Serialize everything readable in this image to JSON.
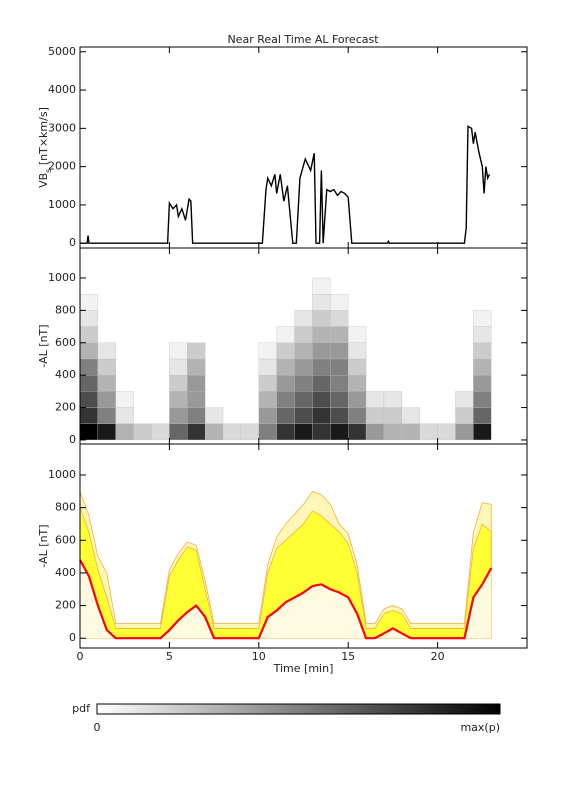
{
  "title": "Near Real Time AL Forecast",
  "chart_data": [
    {
      "type": "line",
      "ylabel": [
        "VB",
        "s",
        " [nT×km/s]"
      ],
      "color": "#000000",
      "xlim": [
        0,
        25
      ],
      "xticks": [
        0,
        5,
        10,
        15,
        20
      ],
      "ylim": [
        -125,
        5125
      ],
      "yticks": [
        0,
        1000,
        2000,
        3000,
        4000,
        5000
      ],
      "x": [
        0,
        0.4,
        0.45,
        0.5,
        4.9,
        5.0,
        5.2,
        5.4,
        5.5,
        5.7,
        5.9,
        6.1,
        6.2,
        6.3,
        10.2,
        10.4,
        10.5,
        10.7,
        10.9,
        11.0,
        11.2,
        11.4,
        11.6,
        11.7,
        11.9,
        12.1,
        12.3,
        12.6,
        12.9,
        13.1,
        13.2,
        13.4,
        13.5,
        13.6,
        13.8,
        14.0,
        14.2,
        14.4,
        14.6,
        14.8,
        15.0,
        15.2,
        17.2,
        17.25,
        17.3,
        21.5,
        21.6,
        21.7,
        21.9,
        22.0,
        22.1,
        22.3,
        22.5,
        22.6,
        22.7,
        22.8,
        22.9
      ],
      "values": [
        0,
        0,
        200,
        0,
        0,
        1050,
        900,
        1000,
        700,
        900,
        600,
        1150,
        1100,
        0,
        0,
        1400,
        1700,
        1500,
        1800,
        1300,
        1800,
        1100,
        1500,
        1000,
        0,
        0,
        1700,
        2200,
        1900,
        2350,
        0,
        0,
        1900,
        0,
        1400,
        1350,
        1400,
        1250,
        1350,
        1300,
        1200,
        0,
        0,
        50,
        0,
        0,
        400,
        3050,
        3000,
        2600,
        2900,
        2400,
        2000,
        1300,
        2000,
        1700,
        1800
      ]
    },
    {
      "type": "heatmap",
      "ylabel": "-AL [nT]",
      "xlim": [
        0,
        25
      ],
      "xticks": [
        0,
        5,
        10,
        15,
        20
      ],
      "ylim": [
        -25,
        1185
      ],
      "yticks": [
        0,
        200,
        400,
        600,
        800,
        1000
      ],
      "x_bins": [
        0,
        1,
        2,
        3,
        4,
        5,
        6,
        7,
        8,
        9,
        10,
        11,
        12,
        13,
        14,
        15,
        16,
        17,
        18,
        19,
        20,
        21,
        22,
        23
      ],
      "y_bins": [
        0,
        100,
        200,
        300,
        400,
        500,
        600,
        700,
        800,
        900,
        1000
      ],
      "values": [
        [
          1,
          0.8,
          0.7,
          0.6,
          0.5,
          0.3,
          0.2,
          0.1,
          0.05,
          0
        ],
        [
          0.9,
          0.5,
          0.4,
          0.3,
          0.2,
          0.1,
          0,
          0,
          0,
          0
        ],
        [
          0.3,
          0.1,
          0.05,
          0,
          0,
          0,
          0,
          0,
          0,
          0
        ],
        [
          0.2,
          0,
          0,
          0,
          0,
          0,
          0,
          0,
          0,
          0
        ],
        [
          0.15,
          0,
          0,
          0,
          0,
          0,
          0,
          0,
          0,
          0
        ],
        [
          0.6,
          0.4,
          0.3,
          0.2,
          0.1,
          0.05,
          0,
          0,
          0,
          0
        ],
        [
          0.8,
          0.5,
          0.4,
          0.4,
          0.3,
          0.2,
          0,
          0,
          0,
          0
        ],
        [
          0.3,
          0.1,
          0,
          0,
          0,
          0,
          0,
          0,
          0,
          0
        ],
        [
          0.15,
          0,
          0,
          0,
          0,
          0,
          0,
          0,
          0,
          0
        ],
        [
          0.15,
          0,
          0,
          0,
          0,
          0,
          0,
          0,
          0,
          0
        ],
        [
          0.5,
          0.4,
          0.3,
          0.2,
          0.1,
          0.05,
          0,
          0,
          0,
          0
        ],
        [
          0.8,
          0.6,
          0.5,
          0.4,
          0.3,
          0.2,
          0.05,
          0,
          0,
          0
        ],
        [
          0.9,
          0.7,
          0.6,
          0.5,
          0.4,
          0.3,
          0.2,
          0.1,
          0,
          0
        ],
        [
          0.8,
          0.8,
          0.7,
          0.6,
          0.5,
          0.4,
          0.3,
          0.2,
          0.1,
          0.05
        ],
        [
          0.9,
          0.7,
          0.6,
          0.5,
          0.5,
          0.4,
          0.3,
          0.15,
          0.05,
          0
        ],
        [
          0.8,
          0.5,
          0.4,
          0.3,
          0.2,
          0.1,
          0.05,
          0,
          0,
          0
        ],
        [
          0.4,
          0.2,
          0.1,
          0,
          0,
          0,
          0,
          0,
          0,
          0
        ],
        [
          0.3,
          0.2,
          0.1,
          0,
          0,
          0,
          0,
          0,
          0,
          0
        ],
        [
          0.3,
          0.1,
          0,
          0,
          0,
          0,
          0,
          0,
          0,
          0
        ],
        [
          0.15,
          0,
          0,
          0,
          0,
          0,
          0,
          0,
          0,
          0
        ],
        [
          0.15,
          0,
          0,
          0,
          0,
          0,
          0,
          0,
          0,
          0
        ],
        [
          0.4,
          0.2,
          0.1,
          0,
          0,
          0,
          0,
          0,
          0,
          0
        ],
        [
          0.9,
          0.6,
          0.5,
          0.4,
          0.3,
          0.2,
          0.1,
          0.05,
          0,
          0
        ]
      ]
    },
    {
      "type": "band",
      "ylabel": "-AL [nT]",
      "xlabel": "Time [min]",
      "xlim": [
        0,
        25
      ],
      "xticks": [
        0,
        5,
        10,
        15,
        20
      ],
      "ylim": [
        -60,
        1190
      ],
      "yticks": [
        0,
        200,
        400,
        600,
        800,
        1000
      ],
      "x": [
        0,
        0.5,
        1,
        1.5,
        2,
        2.5,
        3,
        3.5,
        4,
        4.5,
        5,
        5.5,
        6,
        6.5,
        7,
        7.5,
        8,
        8.5,
        9,
        9.5,
        10,
        10.5,
        11,
        11.5,
        12,
        12.5,
        13,
        13.5,
        14,
        14.5,
        15,
        15.5,
        16,
        16.5,
        17,
        17.5,
        18,
        18.5,
        19,
        19.5,
        20,
        20.5,
        21,
        21.5,
        22,
        22.5,
        23
      ],
      "series": [
        {
          "color": "#fff7b8",
          "values": [
            900,
            750,
            500,
            400,
            90,
            90,
            90,
            90,
            90,
            90,
            420,
            520,
            590,
            570,
            350,
            90,
            90,
            90,
            90,
            90,
            90,
            450,
            620,
            700,
            760,
            820,
            900,
            880,
            820,
            700,
            640,
            450,
            90,
            90,
            180,
            200,
            180,
            90,
            90,
            90,
            90,
            90,
            90,
            90,
            650,
            830,
            820
          ]
        },
        {
          "color": "#ffff33",
          "values": [
            800,
            650,
            420,
            250,
            60,
            60,
            60,
            60,
            60,
            60,
            380,
            480,
            560,
            540,
            300,
            60,
            60,
            60,
            60,
            60,
            60,
            400,
            550,
            600,
            650,
            700,
            780,
            750,
            700,
            650,
            580,
            400,
            60,
            60,
            150,
            170,
            150,
            60,
            60,
            60,
            60,
            60,
            60,
            60,
            550,
            700,
            650
          ]
        },
        {
          "color": "#ff0000",
          "values": [
            480,
            380,
            200,
            50,
            0,
            0,
            0,
            0,
            0,
            0,
            50,
            110,
            160,
            200,
            130,
            0,
            0,
            0,
            0,
            0,
            0,
            130,
            170,
            220,
            250,
            280,
            320,
            330,
            300,
            280,
            250,
            150,
            0,
            0,
            30,
            60,
            30,
            0,
            0,
            0,
            0,
            0,
            0,
            0,
            250,
            330,
            430
          ]
        }
      ]
    }
  ],
  "colorbar": {
    "label": "pdf",
    "min_label": "0",
    "max_label": "max(p)"
  }
}
